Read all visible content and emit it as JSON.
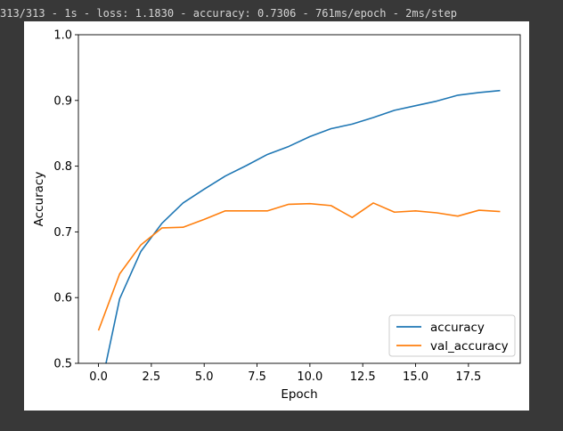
{
  "console": {
    "output_line": "313/313 - 1s - loss: 1.1830 - accuracy: 0.7306 - 761ms/epoch - 2ms/step"
  },
  "chart_data": {
    "type": "line",
    "title": "",
    "xlabel": "Epoch",
    "ylabel": "Accuracy",
    "xlim": [
      -0.95,
      19.95
    ],
    "ylim": [
      0.5,
      1.0
    ],
    "xticks": [
      0.0,
      2.5,
      5.0,
      7.5,
      10.0,
      12.5,
      15.0,
      17.5
    ],
    "xtick_labels": [
      "0.0",
      "2.5",
      "5.0",
      "7.5",
      "10.0",
      "12.5",
      "15.0",
      "17.5"
    ],
    "yticks": [
      0.5,
      0.6,
      0.7,
      0.8,
      0.9,
      1.0
    ],
    "ytick_labels": [
      "0.5",
      "0.6",
      "0.7",
      "0.8",
      "0.9",
      "1.0"
    ],
    "grid": false,
    "legend_position": "lower-right",
    "x": [
      0,
      1,
      2,
      3,
      4,
      5,
      6,
      7,
      8,
      9,
      10,
      11,
      12,
      13,
      14,
      15,
      16,
      17,
      18,
      19
    ],
    "series": [
      {
        "name": "accuracy",
        "color": "#1f77b4",
        "values": [
          0.446,
          0.598,
          0.67,
          0.713,
          0.744,
          0.765,
          0.785,
          0.801,
          0.818,
          0.83,
          0.845,
          0.857,
          0.864,
          0.874,
          0.885,
          0.892,
          0.899,
          0.908,
          0.912,
          0.915
        ]
      },
      {
        "name": "val_accuracy",
        "color": "#ff7f0e",
        "values": [
          0.55,
          0.636,
          0.68,
          0.706,
          0.707,
          0.719,
          0.732,
          0.732,
          0.732,
          0.742,
          0.743,
          0.74,
          0.722,
          0.744,
          0.73,
          0.732,
          0.729,
          0.724,
          0.733,
          0.731
        ]
      }
    ]
  }
}
